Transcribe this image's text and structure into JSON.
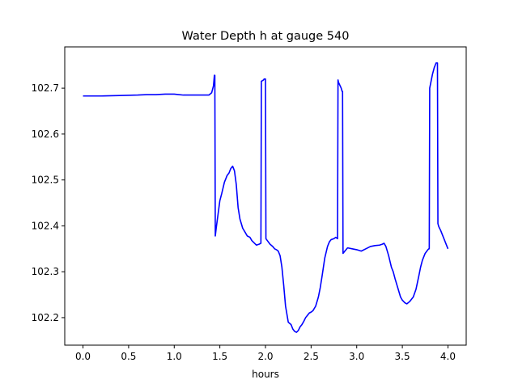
{
  "chart_data": {
    "type": "line",
    "title": "Water Depth h at gauge 540",
    "xlabel": "hours",
    "ylabel": "",
    "xlim": [
      -0.2,
      4.2
    ],
    "ylim": [
      102.14,
      102.79
    ],
    "xticks": [
      0.0,
      0.5,
      1.0,
      1.5,
      2.0,
      2.5,
      3.0,
      3.5,
      4.0
    ],
    "xtick_labels": [
      "0.0",
      "0.5",
      "1.0",
      "1.5",
      "2.0",
      "2.5",
      "3.0",
      "3.5",
      "4.0"
    ],
    "yticks": [
      102.2,
      102.3,
      102.4,
      102.5,
      102.6,
      102.7
    ],
    "ytick_labels": [
      "102.2",
      "102.3",
      "102.4",
      "102.5",
      "102.6",
      "102.7"
    ],
    "grid": false,
    "line_color": "#0000ff",
    "series": [
      {
        "name": "",
        "x": [
          0.0,
          0.2,
          0.4,
          0.6,
          0.7,
          0.8,
          0.9,
          1.0,
          1.05,
          1.1,
          1.2,
          1.3,
          1.38,
          1.41,
          1.43,
          1.44,
          1.445,
          1.45,
          1.46,
          1.48,
          1.5,
          1.52,
          1.55,
          1.58,
          1.6,
          1.62,
          1.64,
          1.66,
          1.68,
          1.7,
          1.72,
          1.75,
          1.78,
          1.8,
          1.83,
          1.85,
          1.88,
          1.9,
          1.93,
          1.95,
          1.955,
          1.98,
          1.985,
          2.0,
          2.005,
          2.02,
          2.05,
          2.08,
          2.1,
          2.12,
          2.14,
          2.16,
          2.18,
          2.2,
          2.22,
          2.25,
          2.28,
          2.3,
          2.32,
          2.34,
          2.36,
          2.38,
          2.4,
          2.42,
          2.44,
          2.46,
          2.48,
          2.5,
          2.52,
          2.55,
          2.58,
          2.6,
          2.62,
          2.65,
          2.68,
          2.7,
          2.72,
          2.75,
          2.77,
          2.79,
          2.795,
          2.8,
          2.83,
          2.84,
          2.845,
          2.85,
          2.87,
          2.9,
          2.95,
          3.0,
          3.05,
          3.1,
          3.15,
          3.2,
          3.25,
          3.28,
          3.3,
          3.32,
          3.35,
          3.38,
          3.4,
          3.42,
          3.45,
          3.48,
          3.5,
          3.53,
          3.55,
          3.58,
          3.6,
          3.62,
          3.65,
          3.68,
          3.7,
          3.72,
          3.75,
          3.78,
          3.79,
          3.795,
          3.8,
          3.83,
          3.85,
          3.87,
          3.88,
          3.885,
          3.89,
          3.9,
          3.92,
          3.95,
          4.0
        ],
        "values": [
          102.683,
          102.683,
          102.684,
          102.685,
          102.686,
          102.686,
          102.687,
          102.687,
          102.686,
          102.685,
          102.685,
          102.685,
          102.685,
          102.69,
          102.705,
          102.728,
          102.728,
          102.378,
          102.395,
          102.425,
          102.455,
          102.47,
          102.495,
          102.51,
          102.515,
          102.525,
          102.53,
          102.52,
          102.49,
          102.44,
          102.415,
          102.395,
          102.385,
          102.378,
          102.375,
          102.368,
          102.362,
          102.358,
          102.36,
          102.362,
          102.715,
          102.718,
          102.72,
          102.72,
          102.372,
          102.368,
          102.36,
          102.355,
          102.35,
          102.348,
          102.345,
          102.335,
          102.31,
          102.27,
          102.225,
          102.19,
          102.185,
          102.175,
          102.17,
          102.168,
          102.172,
          102.18,
          102.185,
          102.192,
          102.2,
          102.205,
          102.21,
          102.212,
          102.215,
          102.225,
          102.245,
          102.265,
          102.29,
          102.33,
          102.355,
          102.365,
          102.37,
          102.372,
          102.375,
          102.372,
          102.718,
          102.713,
          102.7,
          102.693,
          102.693,
          102.34,
          102.345,
          102.352,
          102.35,
          102.348,
          102.345,
          102.35,
          102.355,
          102.357,
          102.358,
          102.36,
          102.362,
          102.355,
          102.335,
          102.31,
          102.3,
          102.285,
          102.265,
          102.245,
          102.238,
          102.232,
          102.23,
          102.235,
          102.24,
          102.245,
          102.262,
          102.29,
          102.31,
          102.325,
          102.34,
          102.348,
          102.35,
          102.35,
          102.7,
          102.73,
          102.745,
          102.755,
          102.755,
          102.755,
          102.405,
          102.398,
          102.39,
          102.375,
          102.35
        ]
      }
    ]
  }
}
